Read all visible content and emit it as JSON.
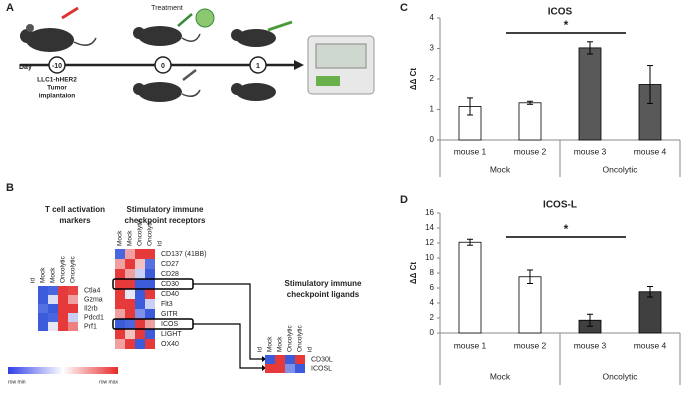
{
  "panel_a": {
    "letter": "A",
    "treatment": "Treatment",
    "day_label": "Day",
    "days": [
      "-10",
      "0",
      "1"
    ],
    "implant_lines": [
      "LLC1-hHER2",
      "Tumor",
      "implantaion"
    ]
  },
  "panel_b": {
    "letter": "B",
    "scale": [
      "row min",
      "row max"
    ],
    "heatmaps": [
      {
        "title_lines": [
          "T cell activation",
          "markers"
        ],
        "columns": [
          "id",
          "Mock",
          "Mock",
          "Oncolytic",
          "Oncolytic"
        ],
        "rows": [
          "Ctla4",
          "Gzma",
          "Il2rb",
          "Pdcd1",
          "Prf1"
        ],
        "cells": [
          [
            null,
            "#3b5bdb",
            "#4a66de",
            "#e63a3a",
            "#e84545"
          ],
          [
            null,
            "#3b5bdb",
            "#d8dcf5",
            "#e63a3a",
            "#f0a0a0"
          ],
          [
            null,
            "#5570e0",
            "#3b5bdb",
            "#e63a3a",
            "#e63a3a"
          ],
          [
            null,
            "#3b5bdb",
            "#4a66de",
            "#e63a3a",
            "#c8d0f5"
          ],
          [
            null,
            "#3b5bdb",
            "#e6e6f5",
            "#e63a3a",
            "#ee8080"
          ]
        ]
      },
      {
        "title_lines": [
          "Stimulatory immune",
          "checkpoint receptors"
        ],
        "columns": [
          "Mock",
          "Mock",
          "Oncolytic",
          "Oncolytic",
          "id"
        ],
        "rows": [
          "CD137 (41BB)",
          "CD27",
          "CD28",
          "CD30",
          "CD40",
          "Flt3",
          "GITR",
          "ICOS",
          "LIGHT",
          "OX40"
        ],
        "cells": [
          [
            "#4a66de",
            "#f0a0a0",
            "#e63a3a",
            "#e63a3a",
            null
          ],
          [
            "#f0a0a0",
            "#e63a3a",
            "#f4c0c0",
            "#5570e0",
            null
          ],
          [
            "#e63a3a",
            "#f0a0a0",
            "#c8d0f5",
            "#3b5bdb",
            null
          ],
          [
            "#e63a3a",
            "#e63a3a",
            "#3b5bdb",
            "#3b5bdb",
            null
          ],
          [
            "#e63a3a",
            "#e8e8f5",
            "#3b5bdb",
            "#e63a3a",
            null
          ],
          [
            "#e63a3a",
            "#e63a3a",
            "#3b5bdb",
            "#c8d0f5",
            null
          ],
          [
            "#f0a0a0",
            "#e63a3a",
            "#8090e8",
            "#3b5bdb",
            null
          ],
          [
            "#3b5bdb",
            "#4a66de",
            "#e63a3a",
            "#f0a0a0",
            null
          ],
          [
            "#e63a3a",
            "#f4c0c0",
            "#e63a3a",
            "#3b5bdb",
            null
          ],
          [
            "#f0a0a0",
            "#e63a3a",
            "#3b5bdb",
            "#e63a3a",
            null
          ]
        ]
      },
      {
        "title_lines": [
          "Stimulatory immune",
          "checkpoint ligands"
        ],
        "columns": [
          "id",
          "Mock",
          "Mock",
          "Oncolytic",
          "Oncolytic",
          "id"
        ],
        "rows": [
          "CD30L",
          "ICOSL"
        ],
        "cells": [
          [
            null,
            "#3b5bdb",
            "#e63a3a",
            "#3b5bdb",
            "#e63a3a",
            null
          ],
          [
            null,
            "#e63a3a",
            "#e63a3a",
            "#8090e8",
            "#3b5bdb",
            null
          ]
        ]
      }
    ]
  },
  "chart_data": [
    {
      "type": "bar",
      "letter": "C",
      "title": "ICOS",
      "ylabel": "ΔΔ Ct",
      "categories": [
        "mouse 1",
        "mouse 2",
        "mouse 3",
        "mouse 4"
      ],
      "groups": [
        "Mock",
        "Oncolytic"
      ],
      "values": [
        1.1,
        1.22,
        3.02,
        1.82
      ],
      "errors": [
        0.28,
        0.05,
        0.2,
        0.62
      ],
      "colors": [
        "#ffffff",
        "#ffffff",
        "#595959",
        "#595959"
      ],
      "ylim": [
        0,
        4
      ],
      "yticks": [
        0,
        1,
        2,
        3,
        4
      ],
      "significance": "*"
    },
    {
      "type": "bar",
      "letter": "D",
      "title": "ICOS-L",
      "ylabel": "ΔΔ Ct",
      "categories": [
        "mouse 1",
        "mouse 2",
        "mouse 3",
        "mouse 4"
      ],
      "groups": [
        "Mock",
        "Oncolytic"
      ],
      "values": [
        12.1,
        7.5,
        1.7,
        5.5
      ],
      "errors": [
        0.4,
        0.9,
        0.8,
        0.7
      ],
      "colors": [
        "#ffffff",
        "#ffffff",
        "#404040",
        "#404040"
      ],
      "ylim": [
        0,
        16
      ],
      "yticks": [
        0,
        2,
        4,
        6,
        8,
        10,
        12,
        14,
        16
      ],
      "significance": "*"
    }
  ]
}
